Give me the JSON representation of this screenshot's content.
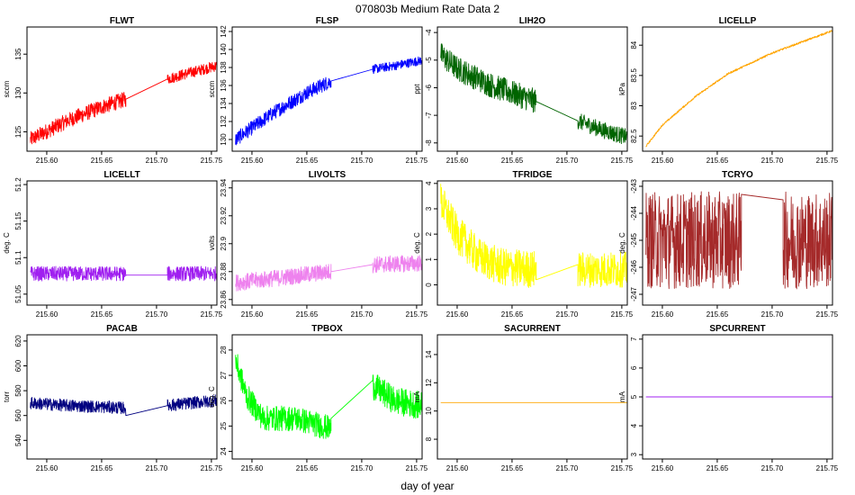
{
  "title": "070803b   Medium Rate Data 2",
  "xlabel": "day of year",
  "chart_data": [
    {
      "type": "line",
      "title": "FLWT",
      "ylabel": "sccm",
      "color": "#ff0000",
      "xlim": [
        215.582,
        215.755
      ],
      "ylim": [
        122.5,
        138.5
      ],
      "yticks": [
        125,
        130,
        135
      ],
      "xticks": [
        215.6,
        215.65,
        215.7,
        215.75
      ],
      "segments": [
        {
          "x": [
            215.585,
            215.62,
            215.65,
            215.672
          ],
          "y": [
            124.0,
            126.5,
            128.2,
            129.2
          ],
          "noise": 2.0
        },
        {
          "x": [
            215.672,
            215.71
          ],
          "y": [
            129.2,
            131.8
          ],
          "noise": 0
        },
        {
          "x": [
            215.71,
            215.73,
            215.755
          ],
          "y": [
            131.8,
            132.6,
            133.5
          ],
          "noise": 1.4
        }
      ]
    },
    {
      "type": "line",
      "title": "FLSP",
      "ylabel": "sccm",
      "color": "#0000ff",
      "xlim": [
        215.582,
        215.755
      ],
      "ylim": [
        128.7,
        142.5
      ],
      "yticks": [
        130,
        132,
        134,
        136,
        138,
        140,
        142
      ],
      "xticks": [
        215.6,
        215.65,
        215.7,
        215.75
      ],
      "segments": [
        {
          "x": [
            215.585,
            215.62,
            215.65,
            215.672
          ],
          "y": [
            130.0,
            133.0,
            135.2,
            136.5
          ],
          "noise": 1.6
        },
        {
          "x": [
            215.672,
            215.71
          ],
          "y": [
            136.5,
            137.8
          ],
          "noise": 0
        },
        {
          "x": [
            215.71,
            215.73,
            215.755
          ],
          "y": [
            137.8,
            138.2,
            138.8
          ],
          "noise": 1.0
        }
      ]
    },
    {
      "type": "line",
      "title": "LIH2O",
      "ylabel": "ppt",
      "color": "#006400",
      "xlim": [
        215.582,
        215.755
      ],
      "ylim": [
        -8.3,
        -3.8
      ],
      "yticks": [
        -8,
        -7,
        -6,
        -5,
        -4
      ],
      "xticks": [
        215.6,
        215.65,
        215.7,
        215.75
      ],
      "segments": [
        {
          "x": [
            215.585,
            215.6,
            215.63,
            215.672
          ],
          "y": [
            -4.8,
            -5.3,
            -5.9,
            -6.5
          ],
          "noise": 0.9
        },
        {
          "x": [
            215.672,
            215.71
          ],
          "y": [
            -6.5,
            -7.2
          ],
          "noise": 0
        },
        {
          "x": [
            215.71,
            215.73,
            215.755
          ],
          "y": [
            -7.2,
            -7.5,
            -7.8
          ],
          "noise": 0.6
        }
      ]
    },
    {
      "type": "line",
      "title": "LICELLP",
      "ylabel": "kPa",
      "color": "#ffa500",
      "xlim": [
        215.582,
        215.755
      ],
      "ylim": [
        82.25,
        84.3
      ],
      "yticks": [
        82.5,
        83.0,
        83.5,
        84.0
      ],
      "xticks": [
        215.6,
        215.65,
        215.7,
        215.75
      ],
      "segments": [
        {
          "x": [
            215.585,
            215.6,
            215.63,
            215.66,
            215.7,
            215.755
          ],
          "y": [
            82.33,
            82.68,
            83.15,
            83.53,
            83.87,
            84.24
          ],
          "noise": 0.03
        }
      ]
    },
    {
      "type": "line",
      "title": "LICELLT",
      "ylabel": "deg. C",
      "color": "#a020f0",
      "xlim": [
        215.582,
        215.755
      ],
      "ylim": [
        51.035,
        51.205
      ],
      "yticks": [
        51.05,
        51.1,
        51.15,
        51.2
      ],
      "xticks": [
        215.6,
        215.65,
        215.7,
        215.75
      ],
      "segments": [
        {
          "x": [
            215.585,
            215.672
          ],
          "y": [
            51.078,
            51.078
          ],
          "noise": 0.02
        },
        {
          "x": [
            215.672,
            215.71
          ],
          "y": [
            51.076,
            51.076
          ],
          "noise": 0
        },
        {
          "x": [
            215.71,
            215.755
          ],
          "y": [
            51.078,
            51.078
          ],
          "noise": 0.02
        }
      ]
    },
    {
      "type": "line",
      "title": "LIVOLTS",
      "ylabel": "volts",
      "color": "#ee82ee",
      "xlim": [
        215.582,
        215.755
      ],
      "ylim": [
        23.856,
        23.945
      ],
      "yticks": [
        23.86,
        23.88,
        23.9,
        23.92,
        23.94
      ],
      "xticks": [
        215.6,
        215.65,
        215.7,
        215.75
      ],
      "segments": [
        {
          "x": [
            215.585,
            215.63,
            215.672
          ],
          "y": [
            23.872,
            23.876,
            23.88
          ],
          "noise": 0.012
        },
        {
          "x": [
            215.672,
            215.71
          ],
          "y": [
            23.88,
            23.885
          ],
          "noise": 0
        },
        {
          "x": [
            215.71,
            215.755
          ],
          "y": [
            23.885,
            23.886
          ],
          "noise": 0.012
        }
      ]
    },
    {
      "type": "line",
      "title": "TFRIDGE",
      "ylabel": "deg. C",
      "color": "#ffff00",
      "xlim": [
        215.582,
        215.755
      ],
      "ylim": [
        -0.8,
        4.1
      ],
      "yticks": [
        0,
        1,
        2,
        3,
        4
      ],
      "xticks": [
        215.6,
        215.65,
        215.7,
        215.75
      ],
      "segments": [
        {
          "x": [
            215.585,
            215.6,
            215.62,
            215.64,
            215.672
          ],
          "y": [
            3.3,
            2.0,
            1.1,
            0.7,
            0.6
          ],
          "noise": 1.5
        },
        {
          "x": [
            215.672,
            215.71
          ],
          "y": [
            0.2,
            0.8
          ],
          "noise": 0
        },
        {
          "x": [
            215.71,
            215.755
          ],
          "y": [
            0.6,
            0.6
          ],
          "noise": 1.4
        }
      ]
    },
    {
      "type": "line",
      "title": "TCRYO",
      "ylabel": "deg. C",
      "color": "#a52a2a",
      "xlim": [
        215.582,
        215.755
      ],
      "ylim": [
        -247.4,
        -242.8
      ],
      "yticks": [
        -247,
        -246,
        -245,
        -244,
        -243
      ],
      "xticks": [
        215.6,
        215.65,
        215.7,
        215.75
      ],
      "segments": [
        {
          "x": [
            215.585,
            215.672
          ],
          "y": [
            -245.0,
            -245.0
          ],
          "noise": 3.6
        },
        {
          "x": [
            215.672,
            215.71
          ],
          "y": [
            -243.3,
            -243.5
          ],
          "noise": 0
        },
        {
          "x": [
            215.71,
            215.755
          ],
          "y": [
            -245.0,
            -245.0
          ],
          "noise": 3.6
        }
      ]
    },
    {
      "type": "line",
      "title": "PACAB",
      "ylabel": "torr",
      "color": "#000080",
      "xlim": [
        215.582,
        215.755
      ],
      "ylim": [
        525,
        625
      ],
      "yticks": [
        540,
        560,
        580,
        600,
        620
      ],
      "xticks": [
        215.6,
        215.65,
        215.7,
        215.75
      ],
      "segments": [
        {
          "x": [
            215.585,
            215.62,
            215.65,
            215.672
          ],
          "y": [
            570,
            568,
            567,
            566
          ],
          "noise": 10
        },
        {
          "x": [
            215.672,
            215.71
          ],
          "y": [
            560,
            568
          ],
          "noise": 0
        },
        {
          "x": [
            215.71,
            215.73,
            215.755
          ],
          "y": [
            568,
            570,
            572
          ],
          "noise": 10
        }
      ]
    },
    {
      "type": "line",
      "title": "TPBOX",
      "ylabel": "deg. C",
      "color": "#00ff00",
      "xlim": [
        215.582,
        215.755
      ],
      "ylim": [
        23.7,
        28.6
      ],
      "yticks": [
        24,
        25,
        26,
        27,
        28
      ],
      "xticks": [
        215.6,
        215.65,
        215.7,
        215.75
      ],
      "segments": [
        {
          "x": [
            215.585,
            215.595,
            215.61,
            215.64,
            215.672
          ],
          "y": [
            27.6,
            26.2,
            25.3,
            25.3,
            24.9
          ],
          "noise": 1.0
        },
        {
          "x": [
            215.672,
            215.71
          ],
          "y": [
            25.3,
            26.8
          ],
          "noise": 0
        },
        {
          "x": [
            215.71,
            215.73,
            215.755
          ],
          "y": [
            26.6,
            26.0,
            25.8
          ],
          "noise": 1.1
        }
      ]
    },
    {
      "type": "line",
      "title": "SACURRENT",
      "ylabel": "mA",
      "color": "#ffa500",
      "xlim": [
        215.582,
        215.755
      ],
      "ylim": [
        6.6,
        15.4
      ],
      "yticks": [
        8,
        10,
        12,
        14
      ],
      "xticks": [
        215.6,
        215.65,
        215.7,
        215.75
      ],
      "segments": [
        {
          "x": [
            215.585,
            215.755
          ],
          "y": [
            10.6,
            10.6
          ],
          "noise": 0
        }
      ]
    },
    {
      "type": "line",
      "title": "SPCURRENT",
      "ylabel": "mA",
      "color": "#a020f0",
      "xlim": [
        215.582,
        215.755
      ],
      "ylim": [
        2.85,
        7.15
      ],
      "yticks": [
        3,
        4,
        5,
        6,
        7
      ],
      "xticks": [
        215.6,
        215.65,
        215.7,
        215.75
      ],
      "segments": [
        {
          "x": [
            215.585,
            215.755
          ],
          "y": [
            5.0,
            5.0
          ],
          "noise": 0
        }
      ]
    }
  ]
}
